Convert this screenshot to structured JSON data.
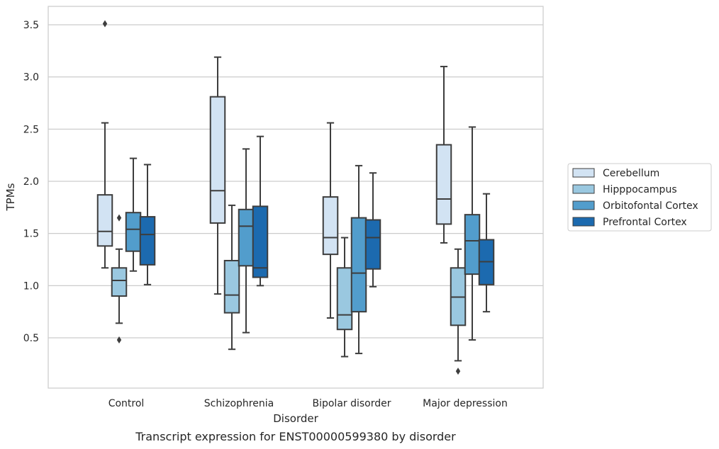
{
  "caption": "Transcript expression for ENST00000599380 by disorder",
  "chart_data": {
    "type": "boxplot",
    "xlabel": "Disorder",
    "ylabel": "TPMs",
    "ylim": [
      0.0,
      3.68
    ],
    "yticks": [
      0.5,
      1.0,
      1.5,
      2.0,
      2.5,
      3.0,
      3.5
    ],
    "ytick_labels": [
      "0.5",
      "1.0",
      "1.5",
      "2.0",
      "2.5",
      "3.0",
      "3.5"
    ],
    "grid": "horizontal",
    "legend_position": "right",
    "categories": [
      "Control",
      "Schizophrenia",
      "Bipolar disorder",
      "Major depression"
    ],
    "series": [
      {
        "name": "Cerebellum",
        "color": "#d2e3f3",
        "boxes": [
          {
            "whislo": 1.17,
            "q1": 1.38,
            "med": 1.52,
            "q3": 1.87,
            "whishi": 2.56,
            "fliers": [
              3.51
            ]
          },
          {
            "whislo": 0.92,
            "q1": 1.6,
            "med": 1.91,
            "q3": 2.81,
            "whishi": 3.19,
            "fliers": []
          },
          {
            "whislo": 0.69,
            "q1": 1.3,
            "med": 1.46,
            "q3": 1.85,
            "whishi": 2.56,
            "fliers": []
          },
          {
            "whislo": 1.41,
            "q1": 1.59,
            "med": 1.83,
            "q3": 2.35,
            "whishi": 3.1,
            "fliers": []
          }
        ]
      },
      {
        "name": "Hipppocampus",
        "color": "#9ac8e0",
        "boxes": [
          {
            "whislo": 0.64,
            "q1": 0.9,
            "med": 1.05,
            "q3": 1.17,
            "whishi": 1.35,
            "fliers": [
              1.65,
              0.48
            ]
          },
          {
            "whislo": 0.39,
            "q1": 0.74,
            "med": 0.91,
            "q3": 1.24,
            "whishi": 1.77,
            "fliers": []
          },
          {
            "whislo": 0.32,
            "q1": 0.58,
            "med": 0.72,
            "q3": 1.17,
            "whishi": 1.46,
            "fliers": []
          },
          {
            "whislo": 0.28,
            "q1": 0.62,
            "med": 0.89,
            "q3": 1.17,
            "whishi": 1.35,
            "fliers": [
              0.18
            ]
          }
        ]
      },
      {
        "name": "Orbitofontal Cortex",
        "color": "#529dcc",
        "boxes": [
          {
            "whislo": 1.14,
            "q1": 1.33,
            "med": 1.54,
            "q3": 1.7,
            "whishi": 2.22,
            "fliers": []
          },
          {
            "whislo": 0.55,
            "q1": 1.19,
            "med": 1.57,
            "q3": 1.73,
            "whishi": 2.31,
            "fliers": []
          },
          {
            "whislo": 0.35,
            "q1": 0.75,
            "med": 1.12,
            "q3": 1.65,
            "whishi": 2.15,
            "fliers": []
          },
          {
            "whislo": 0.48,
            "q1": 1.11,
            "med": 1.43,
            "q3": 1.68,
            "whishi": 2.52,
            "fliers": []
          }
        ]
      },
      {
        "name": "Prefrontal Cortex",
        "color": "#1c6aaf",
        "boxes": [
          {
            "whislo": 1.01,
            "q1": 1.2,
            "med": 1.49,
            "q3": 1.66,
            "whishi": 2.16,
            "fliers": []
          },
          {
            "whislo": 1.0,
            "q1": 1.08,
            "med": 1.17,
            "q3": 1.76,
            "whishi": 2.43,
            "fliers": []
          },
          {
            "whislo": 0.99,
            "q1": 1.16,
            "med": 1.46,
            "q3": 1.63,
            "whishi": 2.08,
            "fliers": []
          },
          {
            "whislo": 0.75,
            "q1": 1.01,
            "med": 1.23,
            "q3": 1.44,
            "whishi": 1.88,
            "fliers": []
          }
        ]
      }
    ]
  }
}
